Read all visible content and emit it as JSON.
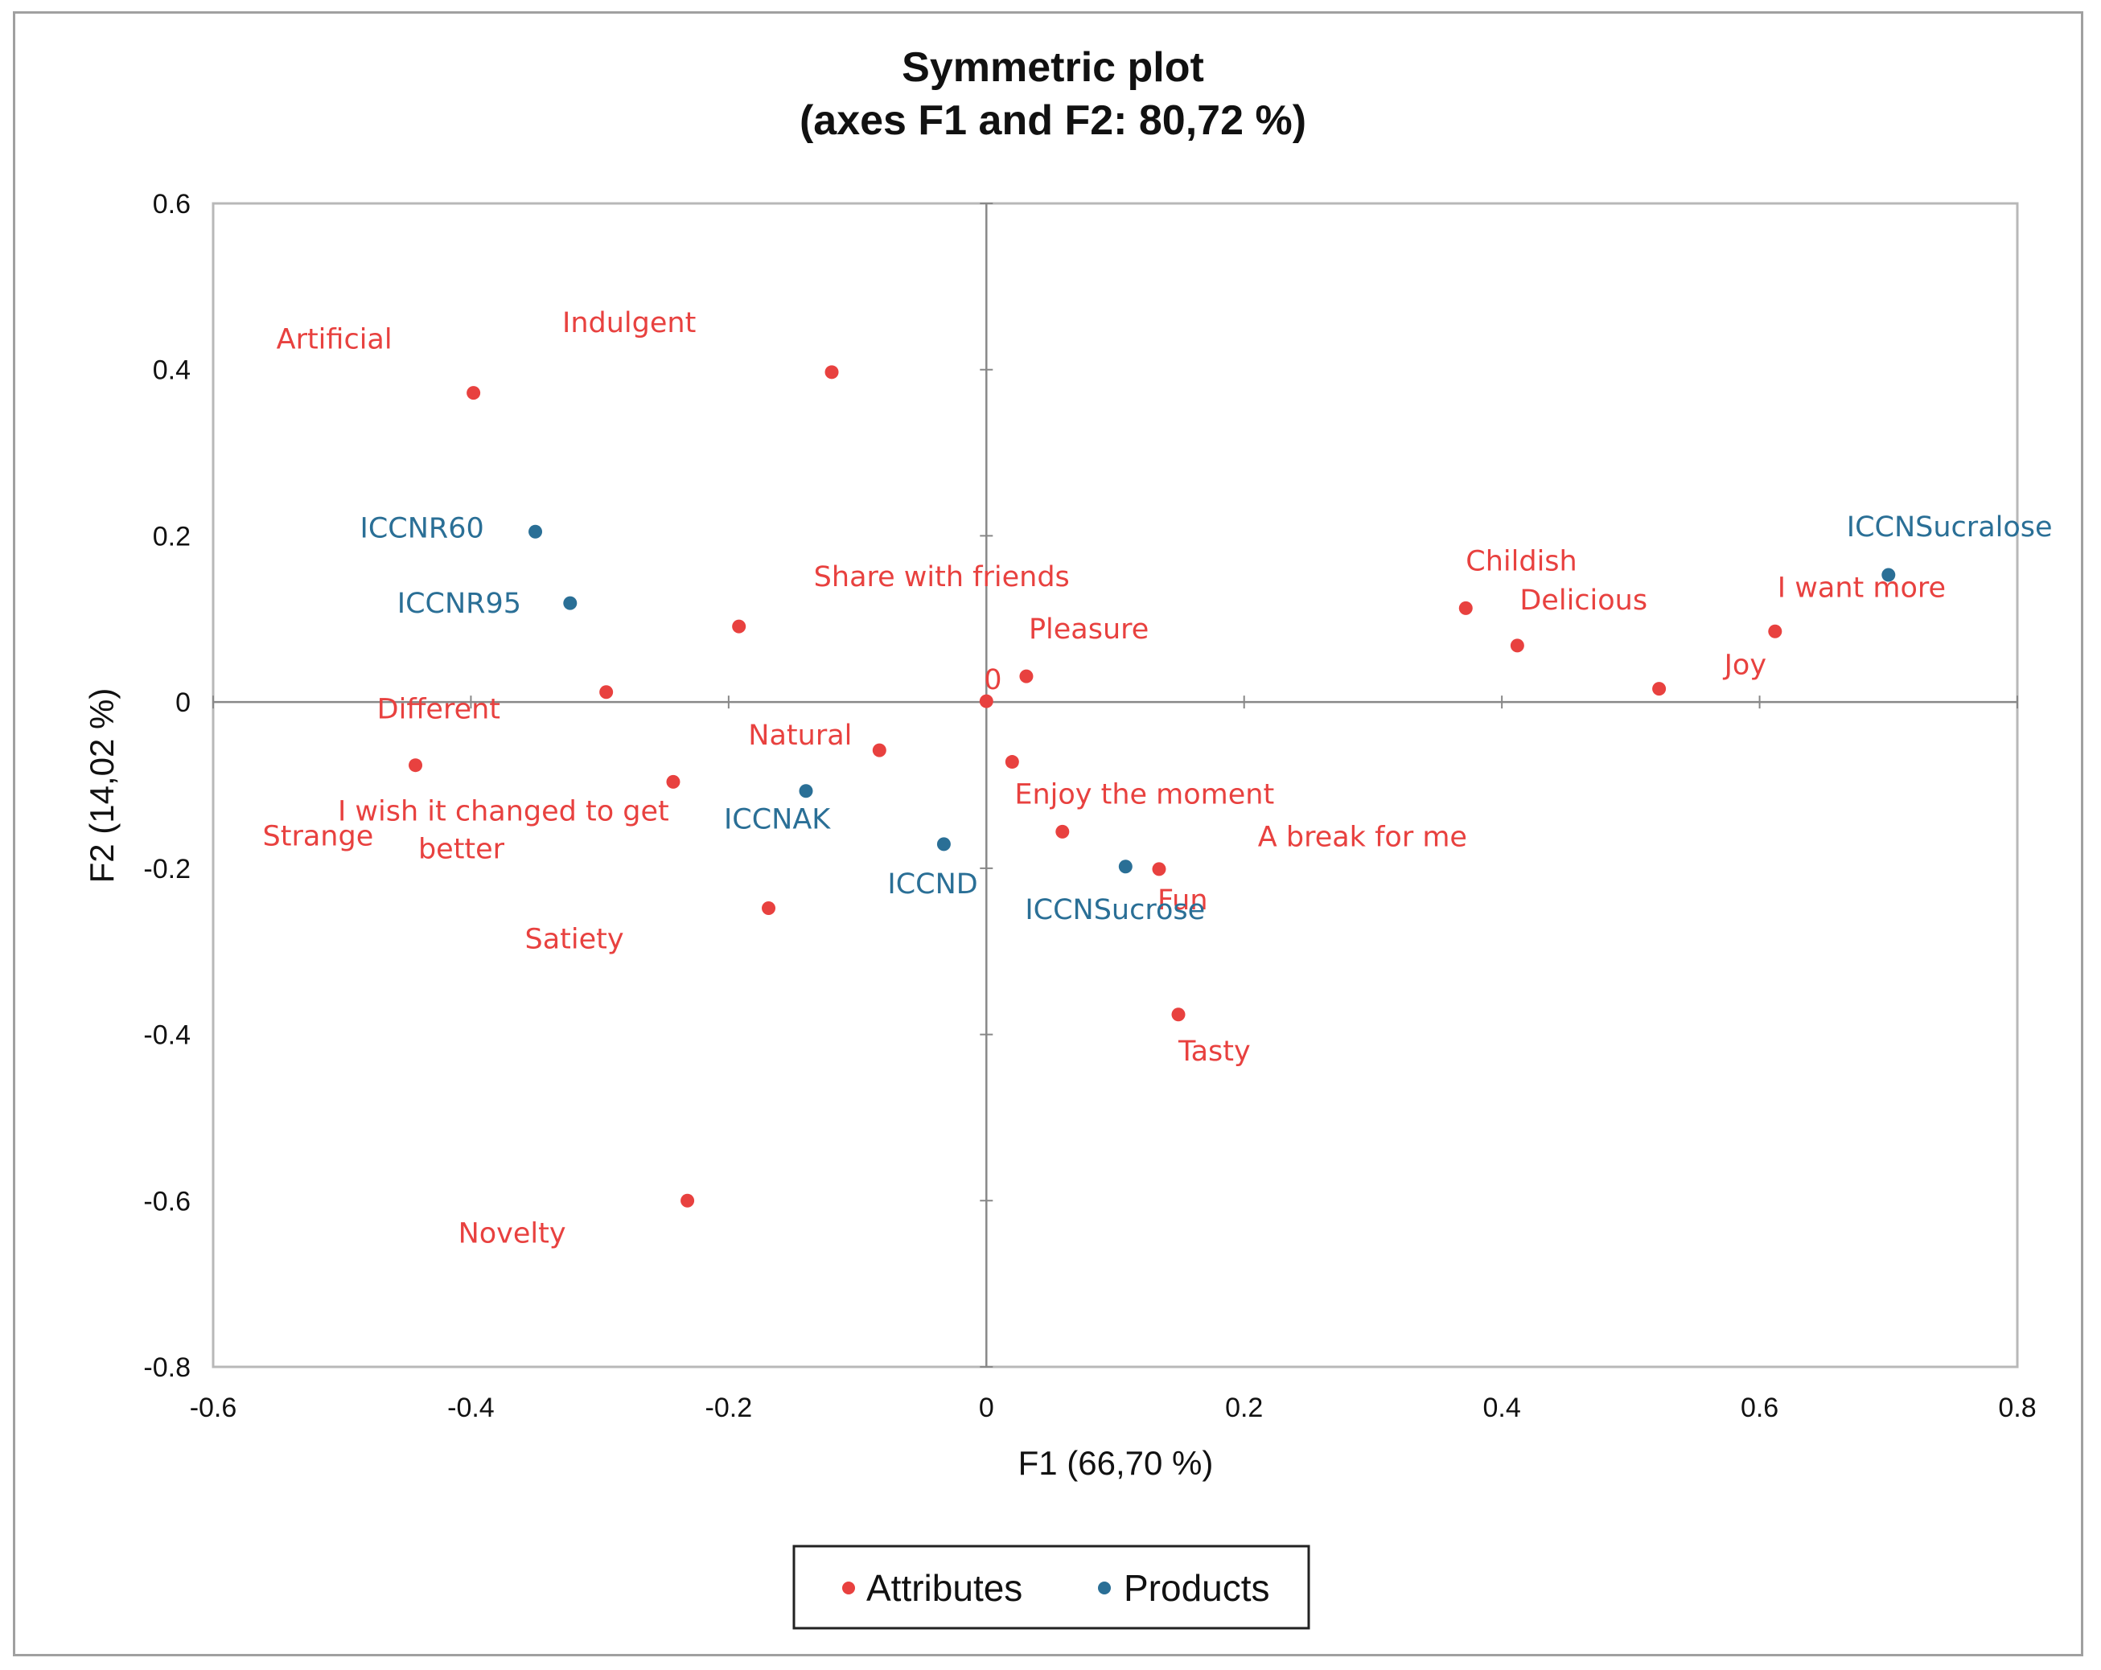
{
  "chart_data": {
    "type": "scatter",
    "title": "Symmetric plot",
    "subtitle": "(axes F1 and F2: 80,72 %)",
    "xlabel": "F1 (66,70 %)",
    "ylabel": "F2 (14,02 %)",
    "xlim": [
      -0.6,
      0.8
    ],
    "ylim": [
      -0.8,
      0.6
    ],
    "x_ticks": [
      -0.6,
      -0.4,
      -0.2,
      0,
      0.2,
      0.4,
      0.6,
      0.8
    ],
    "x_tick_labels": [
      "-0.6",
      "-0.4",
      "-0.2",
      "0",
      "0.2",
      "0.4",
      "0.6",
      "0.8"
    ],
    "y_ticks": [
      -0.8,
      -0.6,
      -0.4,
      -0.2,
      0,
      0.2,
      0.4,
      0.6
    ],
    "y_tick_labels": [
      "-0.8",
      "-0.6",
      "-0.4",
      "-0.2",
      "0",
      "0.2",
      "0.4",
      "0.6"
    ],
    "legend": {
      "position": "bottom",
      "entries": [
        "Attributes",
        "Products"
      ]
    },
    "colors": {
      "Attributes": "#e8413f",
      "Products": "#2a6f96",
      "axis": "#888888",
      "text": "#111111"
    },
    "series": [
      {
        "name": "Attributes",
        "points": [
          {
            "label": "Artificial",
            "x": -0.398,
            "y": 0.372
          },
          {
            "label": "Indulgent",
            "x": -0.12,
            "y": 0.397
          },
          {
            "label": "Share with friends",
            "x": -0.192,
            "y": 0.091
          },
          {
            "label": "Different",
            "x": -0.295,
            "y": 0.012
          },
          {
            "label": "Strange",
            "x": -0.443,
            "y": -0.076
          },
          {
            "label": "I wish it changed to get better",
            "x": -0.243,
            "y": -0.096
          },
          {
            "label": "Natural",
            "x": -0.083,
            "y": -0.058
          },
          {
            "label": "0",
            "x": 0.0,
            "y": 0.001
          },
          {
            "label": "Pleasure",
            "x": 0.031,
            "y": 0.031
          },
          {
            "label": "Enjoy the moment",
            "x": 0.02,
            "y": -0.072
          },
          {
            "label": "A break for me",
            "x": 0.059,
            "y": -0.156
          },
          {
            "label": "Fun",
            "x": 0.134,
            "y": -0.201
          },
          {
            "label": "Satiety",
            "x": -0.169,
            "y": -0.248
          },
          {
            "label": "Tasty",
            "x": 0.149,
            "y": -0.376
          },
          {
            "label": "Novelty",
            "x": -0.232,
            "y": -0.6
          },
          {
            "label": "Childish",
            "x": 0.372,
            "y": 0.113
          },
          {
            "label": "Delicious",
            "x": 0.412,
            "y": 0.068
          },
          {
            "label": "Joy",
            "x": 0.522,
            "y": 0.016
          },
          {
            "label": "I want more",
            "x": 0.612,
            "y": 0.085
          }
        ]
      },
      {
        "name": "Products",
        "points": [
          {
            "label": "ICCNR60",
            "x": -0.35,
            "y": 0.205
          },
          {
            "label": "ICCNR95",
            "x": -0.323,
            "y": 0.119
          },
          {
            "label": "ICCNAK",
            "x": -0.14,
            "y": -0.107
          },
          {
            "label": "ICCND",
            "x": -0.033,
            "y": -0.171
          },
          {
            "label": "ICCNSucrose",
            "x": 0.108,
            "y": -0.198
          },
          {
            "label": "ICCNSucralose",
            "x": 0.7,
            "y": 0.153
          }
        ]
      }
    ]
  }
}
